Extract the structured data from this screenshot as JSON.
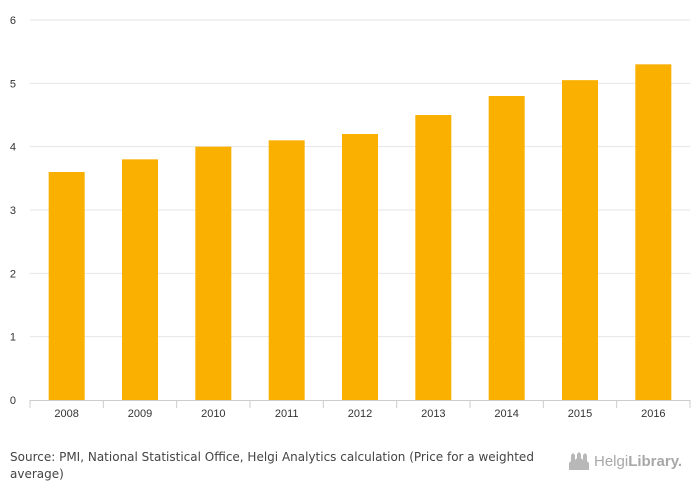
{
  "chart_data": {
    "type": "bar",
    "categories": [
      "2008",
      "2009",
      "2010",
      "2011",
      "2012",
      "2013",
      "2014",
      "2015",
      "2016"
    ],
    "values": [
      3.6,
      3.8,
      4.0,
      4.1,
      4.2,
      4.5,
      4.8,
      5.05,
      5.3
    ],
    "title": "",
    "xlabel": "",
    "ylabel": "",
    "ylim": [
      0,
      6
    ],
    "yticks": [
      "0",
      "1",
      "2",
      "3",
      "4",
      "5",
      "6"
    ],
    "grid": true,
    "legend": "none",
    "bar_color": "#F9B000",
    "grid_color": "#e6e6e6"
  },
  "footer": {
    "source_label": "Source:",
    "source_text": "PMI, National Statistical Office, Helgi Analytics calculation (Price for a weighted average)"
  },
  "logo": {
    "text_regular": "Helgi",
    "text_bold": "Library.",
    "icon": "helgi-library-icon"
  }
}
